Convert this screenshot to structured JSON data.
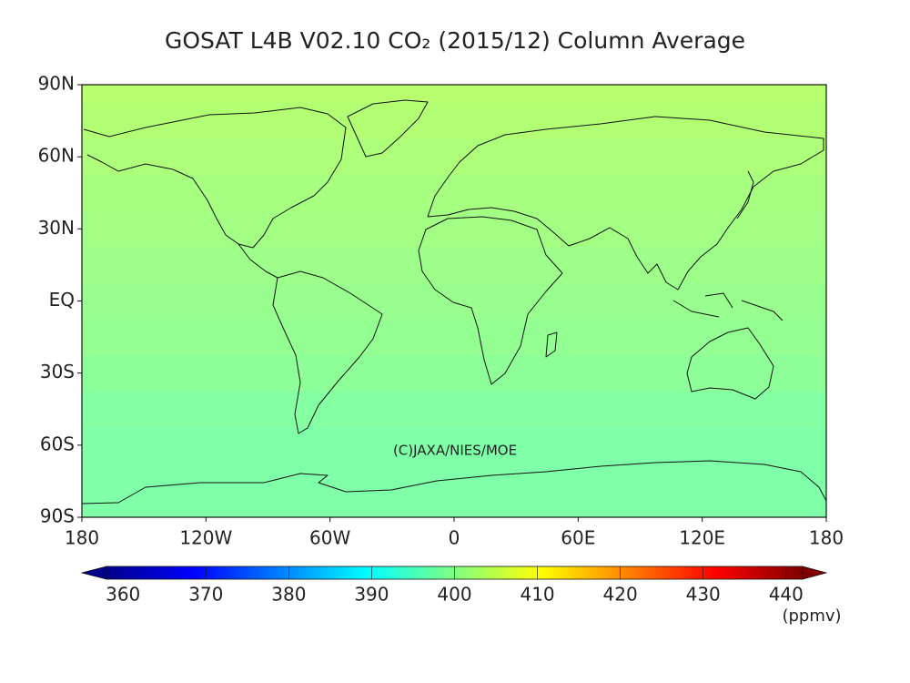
{
  "chart_data": {
    "type": "map",
    "title": "GOSAT L4B V02.10 CO₂ (2015/12) Column Average",
    "xlim": [
      -180,
      180
    ],
    "ylim": [
      -90,
      90
    ],
    "xticks": [
      {
        "value": -180,
        "label": "180"
      },
      {
        "value": -120,
        "label": "120W"
      },
      {
        "value": -60,
        "label": "60W"
      },
      0,
      {
        "value": 60,
        "label": "60E"
      },
      {
        "value": 120,
        "label": "120E"
      },
      180
    ],
    "yticks": [
      {
        "value": 90,
        "label": "90N"
      },
      {
        "value": 60,
        "label": "60N"
      },
      {
        "value": 30,
        "label": "30N"
      },
      {
        "value": 0,
        "label": "EQ"
      },
      {
        "value": -30,
        "label": "30S"
      },
      {
        "value": -60,
        "label": "60S"
      },
      {
        "value": -90,
        "label": "90S"
      }
    ],
    "annotation": "(C)JAXA/NIES/MOE",
    "field": {
      "lat": [
        90,
        75,
        60,
        45,
        30,
        15,
        0,
        -15,
        -30,
        -45,
        -60,
        -75,
        -90
      ],
      "values": [
        403.5,
        403,
        402.5,
        402,
        401.5,
        401,
        400.5,
        400,
        399.5,
        398.5,
        398,
        398,
        398
      ]
    },
    "colorbar": {
      "lim": [
        358,
        442
      ],
      "ticks": [
        360,
        370,
        380,
        390,
        400,
        410,
        420,
        430,
        440
      ],
      "label": "(ppmv)",
      "extend": "both",
      "colors": [
        "#00008b",
        "#0000ff",
        "#0080ff",
        "#00ffff",
        "#80ff80",
        "#ffff00",
        "#ff8000",
        "#ff0000",
        "#800000"
      ]
    }
  }
}
